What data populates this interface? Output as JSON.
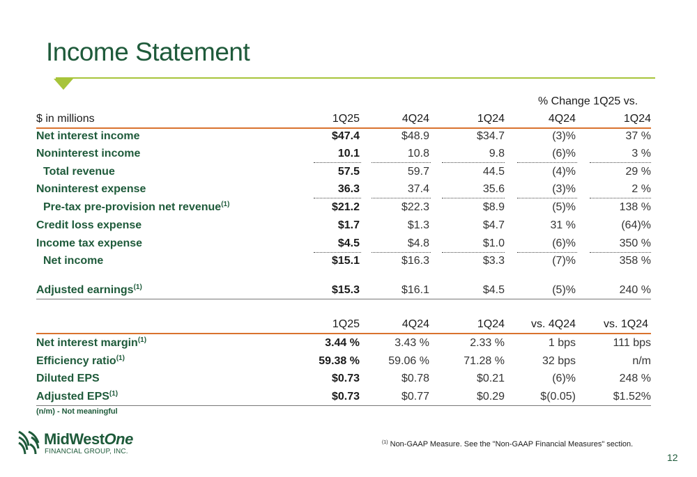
{
  "title": "Income Statement",
  "pct_change_header": "% Change 1Q25 vs.",
  "table1": {
    "headers": [
      "$ in millions",
      "1Q25",
      "4Q24",
      "1Q24",
      "4Q24",
      "1Q24"
    ],
    "rows": [
      {
        "label": "Net interest income",
        "sup": "",
        "v": [
          "$47.4",
          "$48.9",
          "$34.7",
          "(3)%",
          "37 %"
        ]
      },
      {
        "label": "Noninterest income",
        "sup": "",
        "v": [
          "10.1",
          "10.8",
          "9.8",
          "(6)%",
          "3 %"
        ]
      },
      {
        "label": "Total revenue",
        "sup": "",
        "v": [
          "57.5",
          "59.7",
          "44.5",
          "(4)%",
          "29 %"
        ]
      },
      {
        "label": "Noninterest expense",
        "sup": "",
        "v": [
          "36.3",
          "37.4",
          "35.6",
          "(3)%",
          "2 %"
        ]
      },
      {
        "label": "Pre-tax pre-provision net revenue",
        "sup": "(1)",
        "v": [
          "$21.2",
          "$22.3",
          "$8.9",
          "(5)%",
          "138 %"
        ]
      },
      {
        "label": "Credit loss expense",
        "sup": "",
        "v": [
          "$1.7",
          "$1.3",
          "$4.7",
          "31 %",
          "(64)%"
        ]
      },
      {
        "label": "Income tax expense",
        "sup": "",
        "v": [
          "$4.5",
          "$4.8",
          "$1.0",
          "(6)%",
          "350 %"
        ]
      },
      {
        "label": "Net income",
        "sup": "",
        "v": [
          "$15.1",
          "$16.3",
          "$3.3",
          "(7)%",
          "358 %"
        ]
      },
      {
        "label": "Adjusted earnings",
        "sup": "(1)",
        "v": [
          "$15.3",
          "$16.1",
          "$4.5",
          "(5)%",
          "240 %"
        ]
      }
    ]
  },
  "table2": {
    "headers": [
      "1Q25",
      "4Q24",
      "1Q24",
      "vs. 4Q24",
      "vs. 1Q24"
    ],
    "rows": [
      {
        "label": "Net interest margin",
        "sup": "(1)",
        "v": [
          "3.44 %",
          "3.43 %",
          "2.33 %",
          "1 bps",
          "111 bps"
        ]
      },
      {
        "label": "Efficiency ratio",
        "sup": "(1)",
        "v": [
          "59.38 %",
          "59.06 %",
          "71.28 %",
          "32 bps",
          "n/m"
        ]
      },
      {
        "label": "Diluted EPS",
        "sup": "",
        "v": [
          "$0.73",
          "$0.78",
          "$0.21",
          "(6)%",
          "248 %"
        ]
      },
      {
        "label": "Adjusted EPS",
        "sup": "(1)",
        "v": [
          "$0.73",
          "$0.77",
          "$0.29",
          "$(0.05)",
          "$1.52%"
        ]
      }
    ]
  },
  "footnote_left": "(n/m) - Not meaningful",
  "footnote_right": {
    "sup": "(1)",
    "text": "Non-GAAP Measure. See the \"Non-GAAP Financial Measures\" section."
  },
  "page_number": "12",
  "logo": {
    "name_plain": "MidWest",
    "name_italic": "One",
    "subtitle": "FINANCIAL GROUP, INC."
  },
  "colors": {
    "title_green": "#1e5a3a",
    "accent_lime": "#a7c43a",
    "rule_orange": "#d9722e"
  }
}
